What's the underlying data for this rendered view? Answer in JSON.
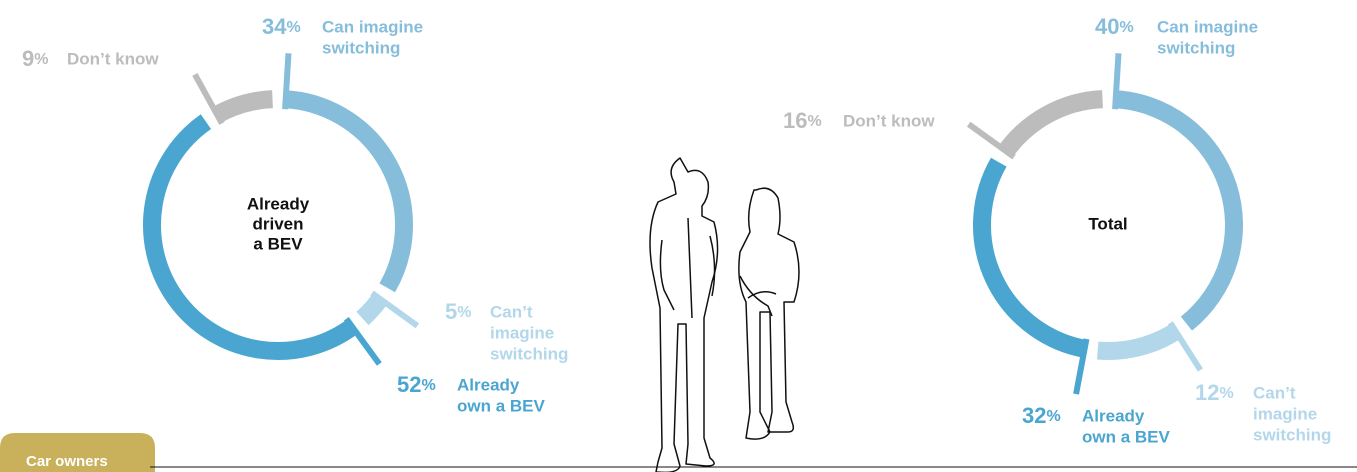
{
  "tab": "Car owners",
  "chart_data": [
    {
      "type": "donut",
      "title": [
        "Already",
        "driven",
        "a BEV"
      ],
      "categories": [
        [
          "Can imagine",
          "switching"
        ],
        [
          "Can’t",
          "imagine",
          "switching"
        ],
        [
          "Already",
          "own a BEV"
        ],
        [
          "Don’t know"
        ]
      ],
      "values": [
        34,
        5,
        52,
        9
      ],
      "value_labels": [
        "34%",
        "5%",
        "52%",
        "9%"
      ],
      "colors": [
        "#86bddb",
        "#b3d7ea",
        "#4aa6d0",
        "#bcbcbc"
      ]
    },
    {
      "type": "donut",
      "title": [
        "Total"
      ],
      "categories": [
        [
          "Can imagine",
          "switching"
        ],
        [
          "Can’t",
          "imagine",
          "switching"
        ],
        [
          "Already",
          "own a BEV"
        ],
        [
          "Don’t know"
        ]
      ],
      "values": [
        40,
        12,
        32,
        16
      ],
      "value_labels": [
        "40%",
        "12%",
        "32%",
        "16%"
      ],
      "colors": [
        "#86bddb",
        "#b3d7ea",
        "#4aa6d0",
        "#bcbcbc"
      ]
    }
  ]
}
